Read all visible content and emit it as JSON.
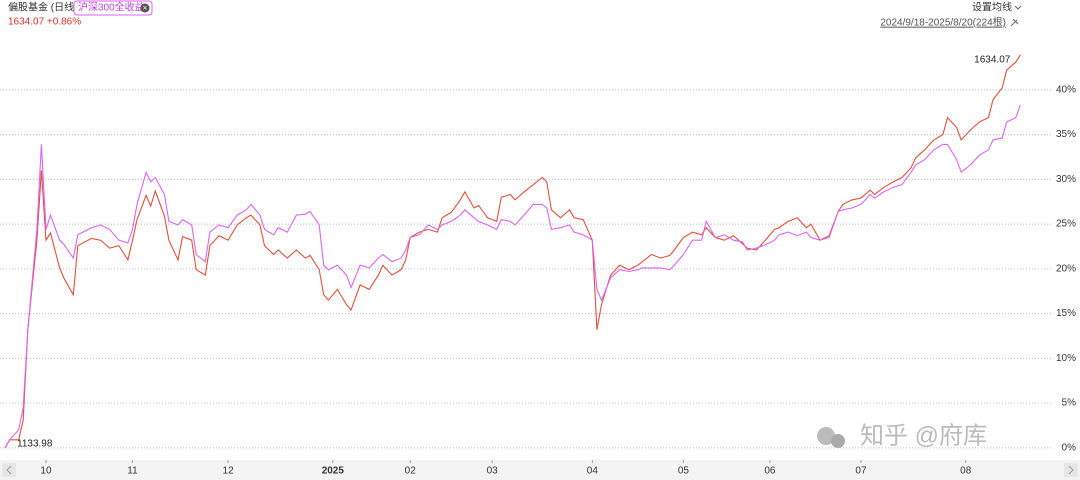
{
  "chart_data": {
    "type": "line",
    "header": {
      "title": "偏股基金 (日线)",
      "compare": "沪深300全收益",
      "price_change": "1634.07 +0.86%",
      "settings": "设置均线",
      "range": "2024/9/18-2025/8/20(224根)"
    },
    "annotations": {
      "start": "1133.98",
      "end": "1634.07",
      "watermark": "知乎 @府库"
    },
    "x": [
      0,
      1,
      3,
      4,
      5,
      7,
      8,
      9,
      10,
      12,
      13,
      15,
      16,
      19,
      21,
      23,
      25,
      27,
      28,
      29,
      31,
      32,
      33,
      35,
      36,
      38,
      39,
      41,
      42,
      44,
      45,
      47,
      49,
      51,
      53,
      54,
      56,
      57,
      59,
      60,
      62,
      64,
      66,
      67,
      69,
      70,
      71,
      73,
      75,
      76,
      78,
      80,
      82,
      83,
      85,
      87,
      88,
      89,
      91,
      93,
      95,
      96,
      98,
      100,
      101,
      103,
      104,
      106,
      108,
      109,
      111,
      112,
      114,
      116,
      118,
      119,
      120,
      122,
      124,
      125,
      127,
      129,
      130,
      131,
      133,
      135,
      137,
      139,
      140,
      142,
      144,
      146,
      147,
      149,
      151,
      153,
      154,
      156,
      158,
      160,
      162,
      163,
      165,
      167,
      169,
      170,
      172,
      174,
      176,
      177,
      179,
      181,
      183,
      184,
      186,
      188,
      190,
      191,
      193,
      195,
      197,
      199,
      200,
      202,
      204,
      206,
      207,
      209,
      210,
      212,
      214,
      216,
      217,
      219,
      220,
      222,
      223
    ],
    "series": [
      {
        "name": "偏股基金",
        "color": "#e0503a",
        "values": [
          0,
          0.9,
          0.9,
          3.1,
          13.2,
          23.2,
          31.0,
          23.2,
          24.0,
          20.1,
          18.9,
          17.1,
          22.6,
          23.4,
          23.2,
          22.3,
          22.6,
          21.0,
          23.2,
          25.5,
          28.2,
          27.0,
          28.7,
          25.9,
          23.2,
          21.0,
          23.6,
          23.2,
          19.9,
          19.3,
          22.6,
          23.7,
          23.2,
          24.9,
          25.7,
          26.0,
          24.9,
          22.6,
          21.6,
          22.1,
          21.2,
          22.1,
          21.2,
          21.5,
          19.9,
          17.1,
          16.5,
          17.7,
          16.0,
          15.4,
          18.2,
          17.7,
          19.3,
          20.4,
          19.3,
          19.9,
          21.0,
          23.5,
          24.1,
          24.4,
          24.1,
          25.7,
          26.3,
          27.7,
          28.6,
          26.8,
          27.1,
          25.7,
          25.3,
          28.0,
          28.3,
          27.7,
          28.6,
          29.4,
          30.2,
          29.7,
          26.6,
          25.7,
          26.6,
          25.7,
          25.5,
          23.2,
          13.2,
          16.0,
          19.3,
          20.4,
          19.9,
          20.4,
          20.8,
          21.6,
          21.2,
          21.5,
          22.1,
          23.5,
          24.1,
          23.8,
          24.6,
          23.5,
          23.2,
          23.7,
          22.8,
          22.3,
          22.1,
          23.2,
          24.4,
          24.6,
          25.3,
          25.7,
          24.6,
          25.0,
          23.2,
          23.7,
          26.4,
          27.2,
          27.7,
          27.9,
          28.8,
          28.3,
          29.1,
          29.7,
          30.2,
          31.3,
          32.4,
          33.3,
          34.4,
          35.0,
          36.9,
          35.8,
          34.4,
          35.5,
          36.4,
          36.9,
          38.9,
          40.2,
          42.2,
          43.1,
          43.9
        ]
      },
      {
        "name": "沪深300全收益",
        "color": "#d966f0",
        "values": [
          0,
          0.9,
          2.0,
          4.5,
          13.2,
          24.4,
          33.9,
          24.4,
          26.0,
          23.2,
          22.7,
          21.2,
          23.8,
          24.6,
          24.9,
          24.4,
          23.2,
          22.9,
          24.4,
          27.2,
          30.8,
          29.7,
          30.2,
          28.3,
          25.3,
          24.9,
          25.5,
          24.9,
          21.6,
          20.8,
          24.1,
          24.9,
          24.6,
          26.0,
          26.6,
          27.2,
          26.0,
          24.4,
          23.8,
          24.6,
          24.1,
          26.0,
          26.1,
          26.4,
          24.9,
          20.4,
          19.9,
          20.4,
          19.3,
          17.9,
          20.4,
          20.1,
          21.2,
          21.6,
          20.8,
          21.2,
          22.1,
          23.5,
          23.8,
          24.9,
          24.4,
          24.9,
          25.3,
          26.0,
          26.6,
          25.7,
          25.3,
          24.9,
          24.4,
          25.5,
          25.3,
          24.9,
          26.0,
          27.2,
          27.2,
          26.8,
          24.4,
          24.6,
          24.9,
          24.1,
          23.8,
          23.2,
          17.7,
          16.5,
          19.0,
          19.9,
          19.7,
          19.9,
          20.1,
          20.1,
          20.1,
          19.9,
          20.4,
          21.6,
          23.2,
          23.2,
          25.3,
          23.5,
          23.8,
          23.2,
          23.0,
          22.1,
          22.3,
          22.7,
          23.2,
          23.8,
          24.1,
          23.7,
          24.1,
          23.5,
          23.2,
          23.5,
          26.4,
          26.6,
          26.8,
          27.2,
          28.3,
          27.9,
          28.6,
          29.1,
          29.4,
          30.8,
          31.6,
          32.2,
          33.3,
          33.9,
          33.9,
          32.2,
          30.8,
          31.6,
          32.7,
          33.3,
          34.4,
          34.6,
          36.4,
          36.9,
          38.3
        ]
      }
    ],
    "xlim": [
      0,
      226
    ],
    "xticks": [
      {
        "value": 9,
        "label": "10"
      },
      {
        "value": 28,
        "label": "11"
      },
      {
        "value": 49,
        "label": "12"
      },
      {
        "value": 72,
        "label": "2025"
      },
      {
        "value": 89,
        "label": "02"
      },
      {
        "value": 107,
        "label": "03"
      },
      {
        "value": 129,
        "label": "04"
      },
      {
        "value": 149,
        "label": "05"
      },
      {
        "value": 168,
        "label": "06"
      },
      {
        "value": 188,
        "label": "07"
      },
      {
        "value": 211,
        "label": "08"
      }
    ],
    "ylim": [
      -0.8,
      47.8
    ],
    "yticks": [
      {
        "value": 0,
        "label": "0%"
      },
      {
        "value": 5,
        "label": "5%"
      },
      {
        "value": 10,
        "label": "10%"
      },
      {
        "value": 15,
        "label": "15%"
      },
      {
        "value": 20,
        "label": "20%"
      },
      {
        "value": 25,
        "label": "25%"
      },
      {
        "value": 30,
        "label": "30%"
      },
      {
        "value": 35,
        "label": "35%"
      },
      {
        "value": 40,
        "label": "40%"
      }
    ],
    "grid": true
  }
}
